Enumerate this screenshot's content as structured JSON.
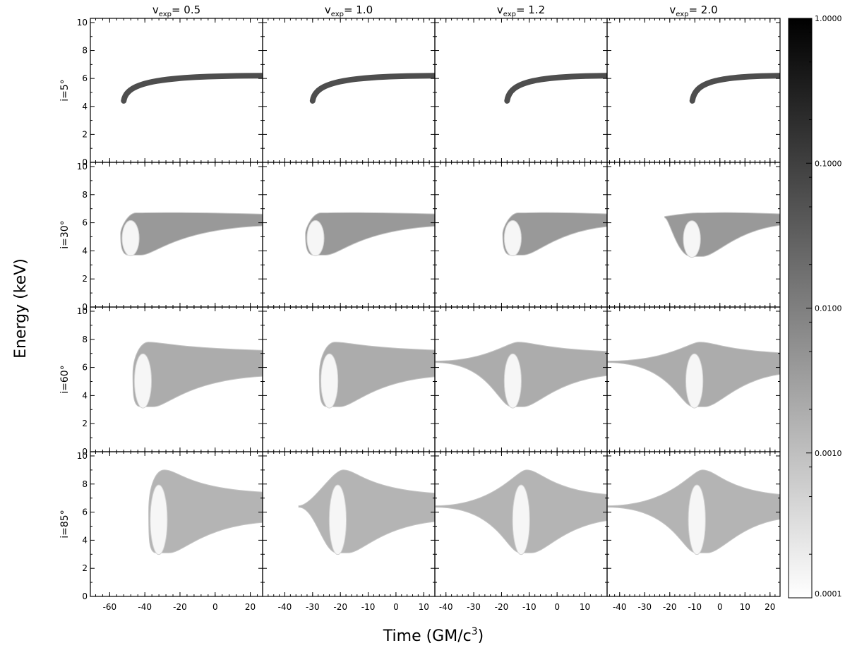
{
  "chart_data": {
    "type": "heatmap",
    "column_titles": [
      {
        "base": "v",
        "sub": "exp",
        "text": "= 0.5"
      },
      {
        "base": "v",
        "sub": "exp",
        "text": "= 1.0"
      },
      {
        "base": "v",
        "sub": "exp",
        "text": "= 1.2"
      },
      {
        "base": "v",
        "sub": "exp",
        "text": "= 2.0"
      }
    ],
    "row_labels": [
      "i=5°",
      "i=30°",
      "i=60°",
      "i=85°"
    ],
    "xlabel": {
      "text": "Time (GM/c",
      "sup": "3",
      "close": ")"
    },
    "ylabel": "Energy (keV)",
    "ylim": [
      0,
      10.3
    ],
    "yticks": [
      0,
      2,
      4,
      6,
      8,
      10
    ],
    "columns": [
      {
        "xlim": [
          -71,
          27
        ],
        "xticks": [
          -60,
          -40,
          -20,
          0,
          20
        ]
      },
      {
        "xlim": [
          -48,
          14
        ],
        "xticks": [
          -40,
          -30,
          -20,
          -10,
          0,
          10
        ]
      },
      {
        "xlim": [
          -44,
          18
        ],
        "xticks": [
          -40,
          -30,
          -20,
          -10,
          0,
          10
        ]
      },
      {
        "xlim": [
          -45,
          24
        ],
        "xticks": [
          -40,
          -30,
          -20,
          -10,
          0,
          10,
          20
        ]
      }
    ],
    "colorbar": {
      "scale": "log",
      "range": [
        0.0001,
        1.0
      ],
      "tick_labels": [
        "1.0000",
        "0.1000",
        "0.0100",
        "0.0010",
        "0.0001"
      ],
      "tick_values": [
        1.0,
        0.1,
        0.01,
        0.001,
        0.0001
      ]
    },
    "colormap": "white-to-black",
    "panels": [
      [
        {
          "kind": "thin",
          "x0": -52,
          "e0": 4.4,
          "x1": 27,
          "e1": 6.2,
          "level": 0.06
        },
        {
          "kind": "thin",
          "x0": -30,
          "e0": 4.4,
          "x1": 14,
          "e1": 6.2,
          "level": 0.06
        },
        {
          "kind": "thin",
          "x0": -18,
          "e0": 4.4,
          "x1": 18,
          "e1": 6.2,
          "level": 0.06
        },
        {
          "kind": "thin",
          "x0": -11,
          "e0": 4.4,
          "x1": 24,
          "e1": 6.2,
          "level": 0.06
        }
      ],
      [
        {
          "kind": "horn",
          "xc": -45,
          "emin": 3.7,
          "emax": 6.7,
          "lead": 0,
          "tail_hi": 6.6,
          "tail_lo": 5.8,
          "level": 0.004
        },
        {
          "kind": "horn",
          "xc": -27,
          "emin": 3.7,
          "emax": 6.7,
          "lead": 0,
          "tail_hi": 6.6,
          "tail_lo": 5.8,
          "level": 0.004
        },
        {
          "kind": "horn",
          "xc": -14,
          "emin": 3.7,
          "emax": 6.7,
          "lead": 0,
          "tail_hi": 6.6,
          "tail_lo": 5.8,
          "level": 0.004
        },
        {
          "kind": "horn",
          "xc": -9,
          "emin": 3.6,
          "emax": 6.7,
          "lead": -22,
          "lead_e": 6.4,
          "tail_hi": 6.6,
          "tail_lo": 5.9,
          "level": 0.004
        }
      ],
      [
        {
          "kind": "horn",
          "xc": -38,
          "emin": 3.2,
          "emax": 7.8,
          "lead": 0,
          "tail_hi": 7.2,
          "tail_lo": 5.4,
          "level": 0.002
        },
        {
          "kind": "horn",
          "xc": -22,
          "emin": 3.2,
          "emax": 7.8,
          "lead": 0,
          "tail_hi": 7.2,
          "tail_lo": 5.4,
          "level": 0.002
        },
        {
          "kind": "horn",
          "xc": -14,
          "emin": 3.2,
          "emax": 7.8,
          "lead": -44,
          "lead_e": 6.4,
          "tail_hi": 7.1,
          "tail_lo": 5.5,
          "level": 0.002
        },
        {
          "kind": "horn",
          "xc": -8,
          "emin": 3.2,
          "emax": 7.8,
          "lead": -45,
          "lead_e": 6.4,
          "tail_hi": 7.0,
          "tail_lo": 5.6,
          "level": 0.002
        }
      ],
      [
        {
          "kind": "horn",
          "xc": -29,
          "emin": 3.1,
          "emax": 9.0,
          "lead": 0,
          "tail_hi": 7.4,
          "tail_lo": 5.3,
          "level": 0.0015
        },
        {
          "kind": "horn",
          "xc": -19,
          "emin": 3.1,
          "emax": 9.0,
          "lead": -35,
          "lead_e": 6.4,
          "tail_hi": 7.3,
          "tail_lo": 5.4,
          "level": 0.0015
        },
        {
          "kind": "horn",
          "xc": -11,
          "emin": 3.1,
          "emax": 9.0,
          "lead": -44,
          "lead_e": 6.4,
          "tail_hi": 7.2,
          "tail_lo": 5.5,
          "level": 0.0015
        },
        {
          "kind": "horn",
          "xc": -7,
          "emin": 3.1,
          "emax": 9.0,
          "lead": -45,
          "lead_e": 6.4,
          "tail_hi": 7.2,
          "tail_lo": 5.6,
          "level": 0.0015
        }
      ]
    ]
  }
}
